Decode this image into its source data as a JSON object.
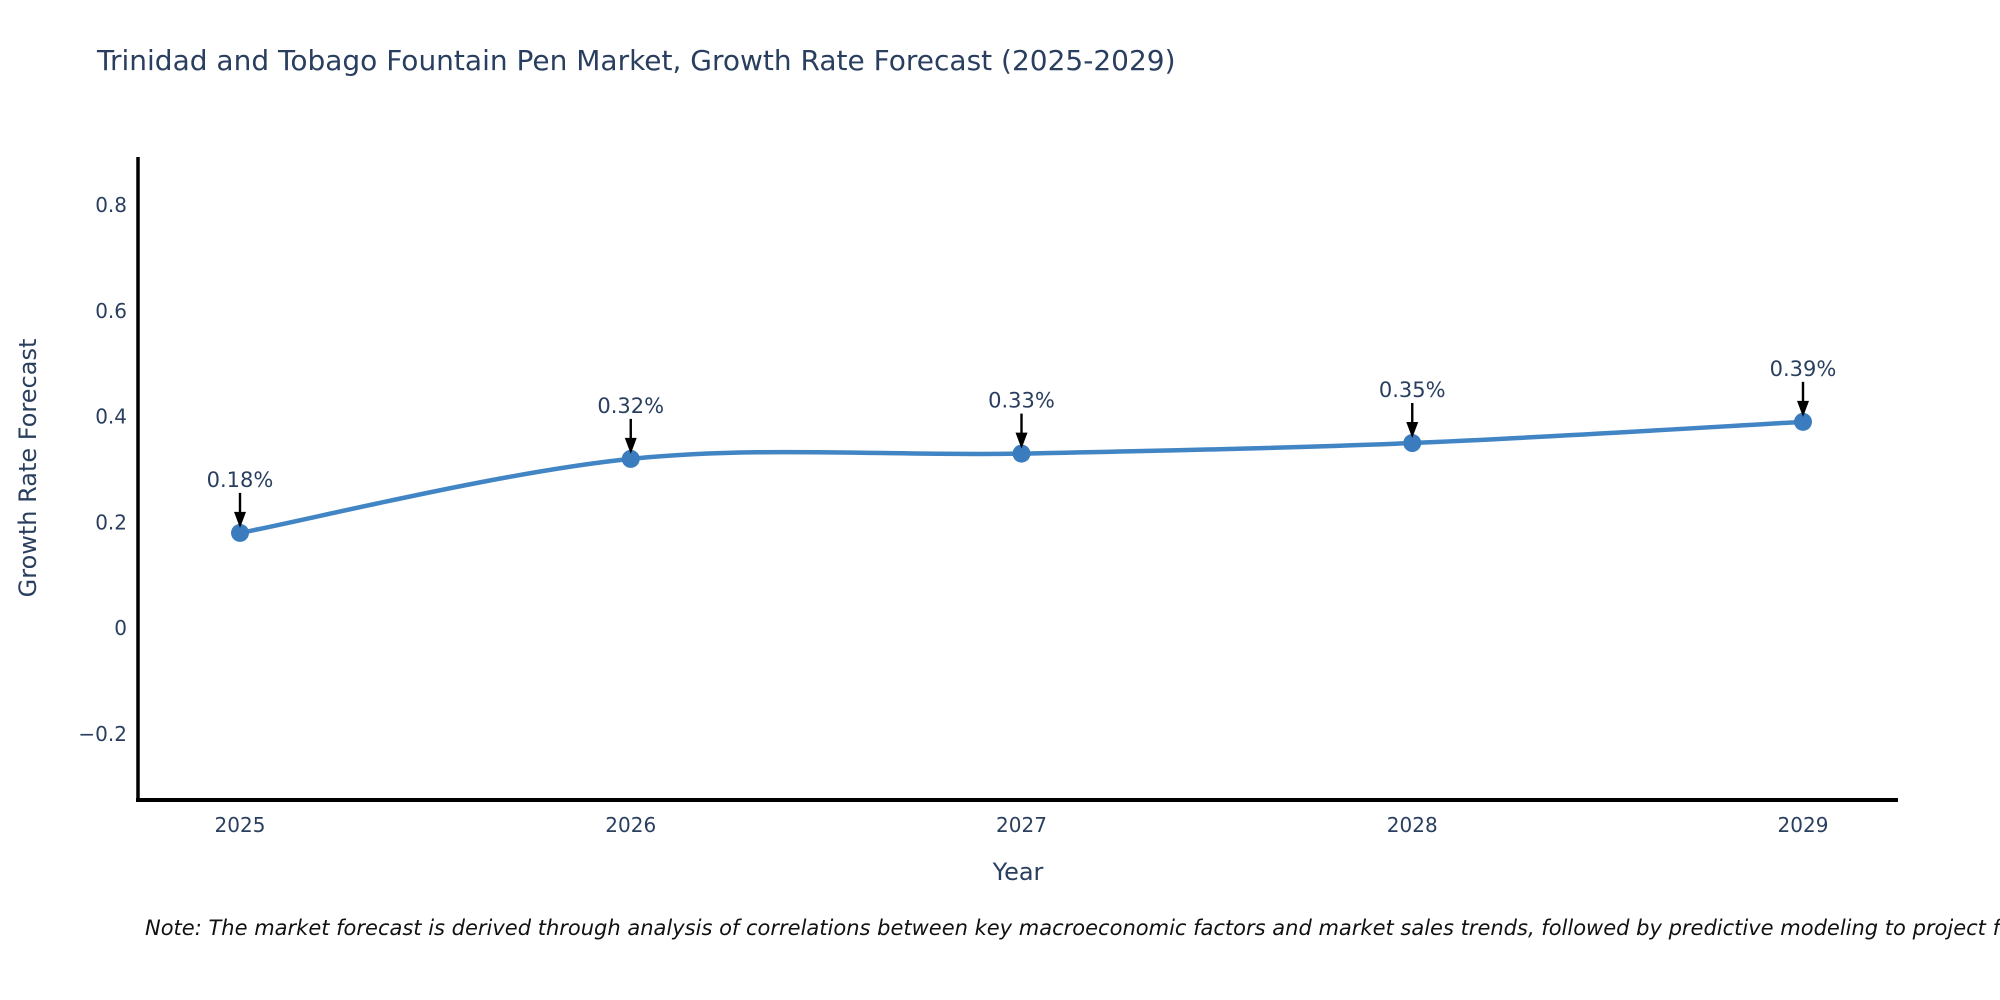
{
  "chart": {
    "title": "Trinidad and Tobago Fountain Pen Market, Growth Rate Forecast (2025-2029)",
    "note": "Note: The market forecast is derived through analysis of correlations between key macroeconomic factors and market sales trends, followed by predictive modeling to project future sales"
  },
  "chart_data": {
    "type": "line",
    "title": "Trinidad and Tobago Fountain Pen Market, Growth Rate Forecast (2025-2029)",
    "x": [
      2025,
      2026,
      2027,
      2028,
      2029
    ],
    "xtick_labels": [
      "2025",
      "2026",
      "2027",
      "2028",
      "2029"
    ],
    "y": [
      0.18,
      0.32,
      0.33,
      0.35,
      0.39
    ],
    "point_labels": [
      "0.18%",
      "0.32%",
      "0.33%",
      "0.35%",
      "0.39%"
    ],
    "xlabel": "Year",
    "ylabel": "Growth Rate Forecast",
    "yticks": [
      -0.2,
      0,
      0.2,
      0.4,
      0.6,
      0.8
    ],
    "ytick_labels": [
      "−0.2",
      "0",
      "0.2",
      "0.4",
      "0.6",
      "0.8"
    ],
    "ylim": [
      -0.325,
      0.887
    ],
    "grid": false,
    "legend": "none",
    "line_shape": "spline",
    "colors": {
      "line": "#4185c5",
      "marker": "#3a7cbe",
      "axis": "#000000",
      "text": "#2a3f5f",
      "annotation_arrow": "#000000",
      "note_text": "#111111"
    }
  }
}
